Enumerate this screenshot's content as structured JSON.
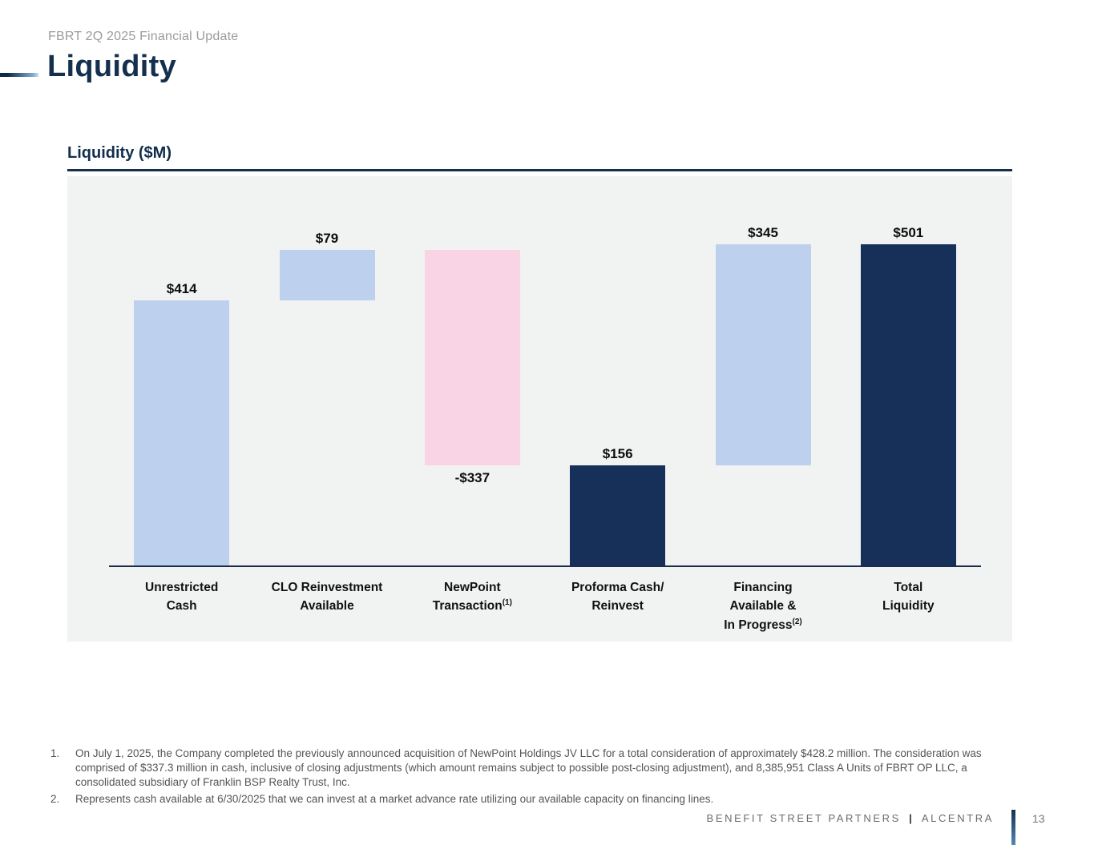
{
  "page": {
    "eyebrow": "FBRT 2Q 2025 Financial Update",
    "title": "Liquidity",
    "section_heading": "Liquidity ($M)",
    "footnotes": [
      {
        "marker": "1.",
        "text": "On July 1, 2025, the Company completed the previously announced acquisition of NewPoint Holdings JV LLC for a total consideration of approximately $428.2 million. The consideration was comprised of $337.3 million in cash, inclusive of closing adjustments (which amount remains subject to possible post-closing adjustment), and 8,385,951 Class A Units of FBRT OP LLC, a consolidated subsidiary of Franklin BSP Realty Trust, Inc."
      },
      {
        "marker": "2.",
        "text": "Represents cash available at 6/30/2025 that we can invest at a market advance rate utilizing our available capacity on financing lines."
      }
    ],
    "footer": {
      "brand_left": "BENEFIT STREET PARTNERS",
      "brand_separator": "|",
      "brand_right": "ALCENTRA",
      "page_number": "13"
    }
  },
  "colors": {
    "accent_navy": "#15304e",
    "bar_light_blue": "#bdd1ee",
    "bar_pink": "#f8d4e4",
    "bar_dark_navy": "#16305a",
    "chart_background": "#f1f2f2",
    "axis_line": "#1a2e49"
  },
  "chart_data": {
    "type": "bar",
    "subtype": "waterfall",
    "title": "Liquidity ($M)",
    "xlabel": "",
    "ylabel": "",
    "ylim": [
      0,
      610
    ],
    "grid": false,
    "legend": false,
    "categories": [
      "Unrestricted Cash",
      "CLO Reinvestment Available",
      "NewPoint Transaction (1)",
      "Proforma Cash/Reinvest",
      "Financing Available & In Progress (2)",
      "Total Liquidity"
    ],
    "bars": [
      {
        "name": "unrestricted-cash",
        "label_lines": [
          "Unrestricted",
          "Cash"
        ],
        "superscript": "",
        "start": 0,
        "end": 414,
        "value": 414,
        "value_label": "$414",
        "value_label_position": "above",
        "color_role": "bar_light_blue"
      },
      {
        "name": "clo-reinvestment-available",
        "label_lines": [
          "CLO Reinvestment",
          "Available"
        ],
        "superscript": "",
        "start": 414,
        "end": 493,
        "value": 79,
        "value_label": "$79",
        "value_label_position": "above",
        "color_role": "bar_light_blue"
      },
      {
        "name": "newpoint-transaction",
        "label_lines": [
          "NewPoint",
          "Transaction"
        ],
        "superscript": "(1)",
        "start": 493,
        "end": 156,
        "value": -337,
        "value_label": "-$337",
        "value_label_position": "below",
        "color_role": "bar_pink"
      },
      {
        "name": "proforma-cash-reinvest",
        "label_lines": [
          "Proforma Cash/",
          "Reinvest"
        ],
        "superscript": "",
        "start": 0,
        "end": 156,
        "value": 156,
        "value_label": "$156",
        "value_label_position": "above",
        "color_role": "bar_dark_navy"
      },
      {
        "name": "financing-available-in-progress",
        "label_lines": [
          "Financing",
          "Available &",
          "In Progress"
        ],
        "superscript": "(2)",
        "start": 156,
        "end": 501,
        "value": 345,
        "value_label": "$345",
        "value_label_position": "above",
        "color_role": "bar_light_blue"
      },
      {
        "name": "total-liquidity",
        "label_lines": [
          "Total",
          "Liquidity"
        ],
        "superscript": "",
        "start": 0,
        "end": 501,
        "value": 501,
        "value_label": "$501",
        "value_label_position": "above",
        "color_role": "bar_dark_navy"
      }
    ]
  }
}
